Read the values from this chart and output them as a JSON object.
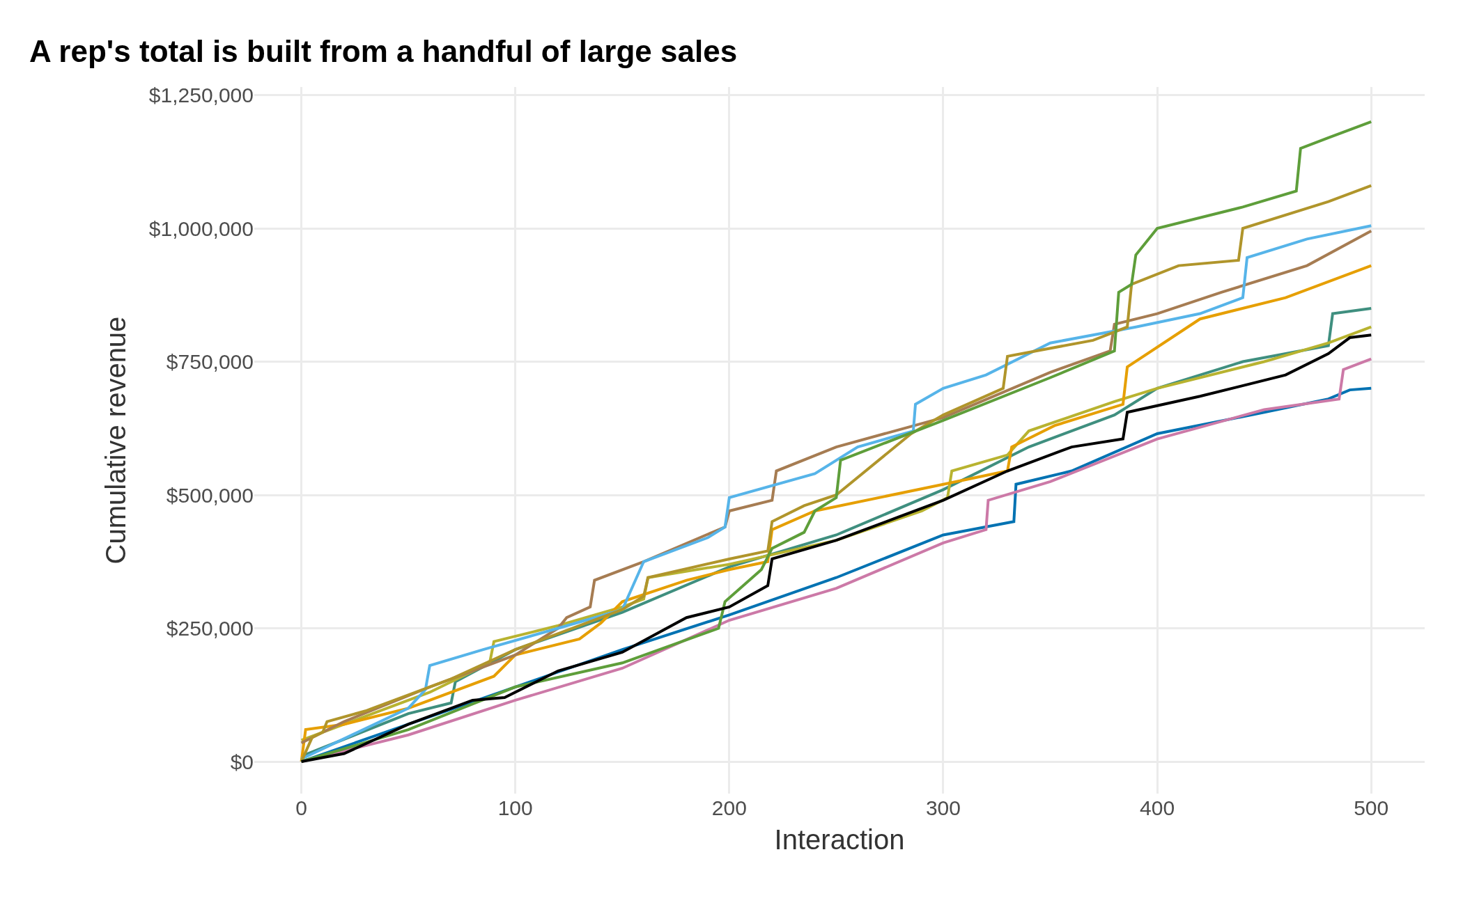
{
  "chart_data": {
    "type": "line",
    "title": "A rep's total is built from a handful of large sales",
    "xlabel": "Interaction",
    "ylabel": "Cumulative revenue",
    "xlim": [
      -22,
      525
    ],
    "ylim": [
      -60000,
      1265000
    ],
    "xticks": [
      0,
      100,
      200,
      300,
      400,
      500
    ],
    "yticks": [
      {
        "value": 0,
        "label": "$0"
      },
      {
        "value": 250000,
        "label": "$250,000"
      },
      {
        "value": 500000,
        "label": "$500,000"
      },
      {
        "value": 750000,
        "label": "$750,000"
      },
      {
        "value": 1000000,
        "label": "$1,000,000"
      },
      {
        "value": 1250000,
        "label": "$1,250,000"
      }
    ],
    "grid": true,
    "marker": "none",
    "line_style": "solid",
    "series": [
      {
        "color": "#0072b2",
        "x": [
          0,
          50,
          100,
          150,
          200,
          250,
          300,
          333,
          334,
          360,
          400,
          450,
          480,
          490,
          500
        ],
        "values": [
          0,
          70000,
          140000,
          210000,
          275000,
          345000,
          425000,
          450000,
          520000,
          545000,
          615000,
          655000,
          680000,
          697000,
          700000
        ]
      },
      {
        "color": "#cc79a7",
        "x": [
          0,
          50,
          100,
          150,
          200,
          250,
          300,
          320,
          321,
          350,
          400,
          450,
          485,
          487,
          500
        ],
        "values": [
          0,
          50000,
          115000,
          175000,
          265000,
          325000,
          410000,
          435000,
          490000,
          525000,
          605000,
          660000,
          680000,
          735000,
          755000
        ]
      },
      {
        "color": "#3f8f7f",
        "x": [
          0,
          50,
          70,
          72,
          100,
          150,
          200,
          250,
          300,
          340,
          380,
          400,
          440,
          480,
          482,
          500
        ],
        "values": [
          10000,
          90000,
          110000,
          150000,
          210000,
          280000,
          365000,
          425000,
          510000,
          590000,
          650000,
          700000,
          750000,
          780000,
          840000,
          850000
        ]
      },
      {
        "color": "#b8b330",
        "x": [
          0,
          20,
          40,
          60,
          88,
          90,
          120,
          150,
          160,
          162,
          200,
          250,
          290,
          302,
          304,
          330,
          340,
          380,
          400,
          450,
          480,
          500
        ],
        "values": [
          40000,
          70000,
          100000,
          130000,
          185000,
          225000,
          255000,
          290000,
          305000,
          345000,
          370000,
          415000,
          470000,
          495000,
          545000,
          575000,
          620000,
          675000,
          700000,
          750000,
          785000,
          815000
        ]
      },
      {
        "color": "#e69f00",
        "x": [
          0,
          2,
          20,
          50,
          90,
          100,
          130,
          140,
          150,
          180,
          200,
          218,
          220,
          240,
          300,
          330,
          332,
          352,
          384,
          386,
          420,
          460,
          500
        ],
        "values": [
          0,
          60000,
          70000,
          100000,
          160000,
          200000,
          230000,
          260000,
          300000,
          340000,
          360000,
          375000,
          435000,
          470000,
          520000,
          545000,
          590000,
          630000,
          670000,
          740000,
          830000,
          870000,
          930000
        ]
      },
      {
        "color": "#a67c52",
        "x": [
          0,
          20,
          60,
          100,
          120,
          124,
          135,
          137,
          160,
          198,
          200,
          220,
          222,
          250,
          300,
          350,
          378,
          380,
          400,
          430,
          470,
          500
        ],
        "values": [
          35000,
          75000,
          140000,
          200000,
          250000,
          270000,
          290000,
          340000,
          375000,
          440000,
          470000,
          490000,
          545000,
          590000,
          645000,
          730000,
          770000,
          820000,
          840000,
          880000,
          930000,
          995000
        ]
      },
      {
        "color": "#56b4e9",
        "x": [
          0,
          50,
          58,
          60,
          85,
          120,
          150,
          160,
          190,
          198,
          200,
          240,
          260,
          286,
          287,
          300,
          320,
          350,
          390,
          420,
          440,
          442,
          470,
          500
        ],
        "values": [
          5000,
          100000,
          135000,
          180000,
          210000,
          250000,
          285000,
          375000,
          420000,
          440000,
          495000,
          540000,
          590000,
          620000,
          670000,
          700000,
          725000,
          785000,
          815000,
          840000,
          870000,
          945000,
          980000,
          1005000
        ]
      },
      {
        "color": "#b0952b",
        "x": [
          0,
          5,
          10,
          12,
          30,
          70,
          100,
          150,
          160,
          162,
          200,
          218,
          220,
          235,
          250,
          285,
          300,
          328,
          330,
          370,
          386,
          388,
          410,
          438,
          440,
          480,
          500
        ],
        "values": [
          0,
          45000,
          55000,
          75000,
          95000,
          155000,
          210000,
          285000,
          310000,
          345000,
          380000,
          395000,
          450000,
          480000,
          500000,
          615000,
          650000,
          700000,
          760000,
          790000,
          815000,
          895000,
          930000,
          940000,
          1000000,
          1050000,
          1080000
        ]
      },
      {
        "color": "#5e9e3a",
        "x": [
          0,
          50,
          100,
          150,
          195,
          198,
          215,
          220,
          235,
          240,
          250,
          252,
          300,
          350,
          380,
          382,
          388,
          390,
          400,
          440,
          465,
          467,
          480,
          500
        ],
        "values": [
          0,
          60000,
          140000,
          185000,
          250000,
          300000,
          360000,
          400000,
          430000,
          470000,
          495000,
          565000,
          640000,
          720000,
          770000,
          880000,
          895000,
          950000,
          1000000,
          1040000,
          1070000,
          1150000,
          1170000,
          1200000
        ]
      },
      {
        "color": "#000000",
        "x": [
          0,
          20,
          50,
          80,
          95,
          120,
          150,
          180,
          200,
          218,
          220,
          250,
          280,
          300,
          330,
          360,
          384,
          386,
          420,
          460,
          480,
          490,
          500
        ],
        "values": [
          0,
          15000,
          70000,
          115000,
          120000,
          170000,
          205000,
          270000,
          290000,
          330000,
          380000,
          415000,
          460000,
          490000,
          545000,
          590000,
          605000,
          655000,
          685000,
          725000,
          765000,
          795000,
          800000
        ]
      }
    ]
  }
}
